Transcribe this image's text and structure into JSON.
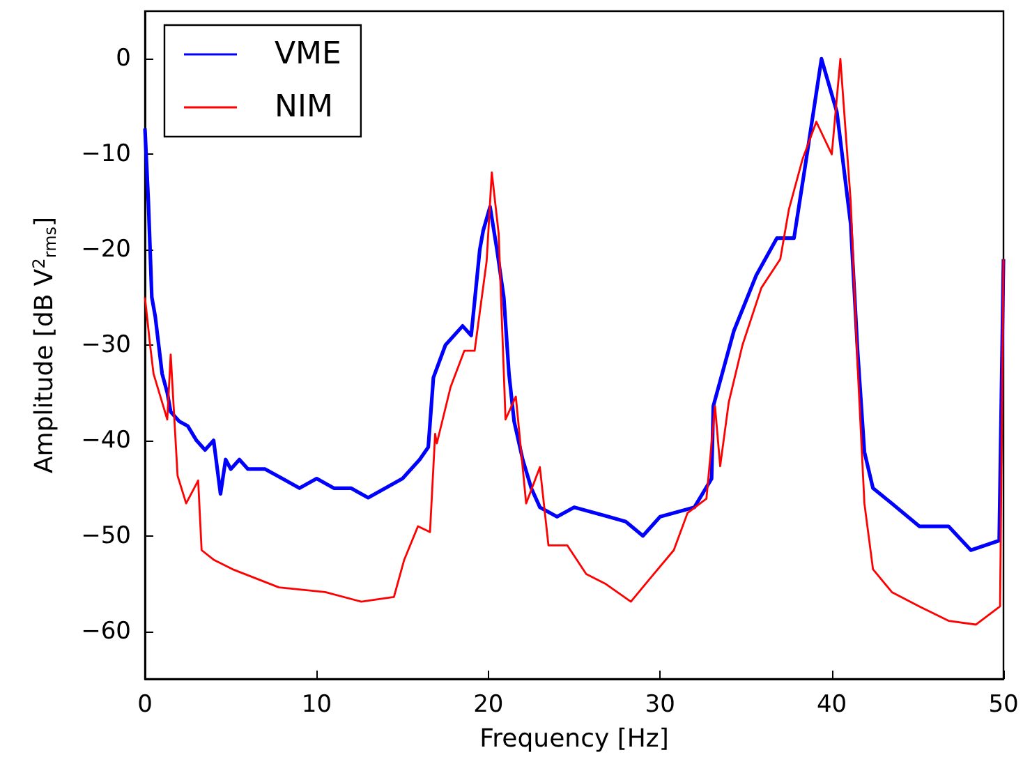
{
  "chart_data": {
    "type": "line",
    "xlabel": "Frequency [Hz]",
    "ylabel": "Amplitude [dB V$^{2}$$_{rms}$]",
    "xlim": [
      0,
      50
    ],
    "xticks": [
      0,
      10,
      20,
      30,
      40,
      50
    ],
    "ylim": [
      -65,
      5
    ],
    "yticks": [
      -60,
      -50,
      -40,
      -30,
      -20,
      -10,
      0
    ],
    "grid": false,
    "legend": "top left",
    "marker": "none",
    "line_style": "solid",
    "series": [
      {
        "name": "VME",
        "color": "#0000ff",
        "x": [
          0,
          0.2,
          0.4,
          0.6,
          0.8,
          1.0,
          1.3,
          1.5,
          2.0,
          2.5,
          3.0,
          3.5,
          4.0,
          4.4,
          4.7,
          5.0,
          5.5,
          6.0,
          7.0,
          8.0,
          9.0,
          10.0,
          11.0,
          12.0,
          13.0,
          14.0,
          15.0,
          16.0,
          16.5,
          16.8,
          17.5,
          18.5,
          19.0,
          19.5,
          19.7,
          20.1,
          20.5,
          20.9,
          21.2,
          21.5,
          22.0,
          22.5,
          23.0,
          24.0,
          25.0,
          26.0,
          27.0,
          28.0,
          29.0,
          30.0,
          31.0,
          32.0,
          33.0,
          33.1,
          34.3,
          35.6,
          36.8,
          37.8,
          38.6,
          39.4,
          40.3,
          41.1,
          41.5,
          41.9,
          42.4,
          43.5,
          45.1,
          46.8,
          48.1,
          49.75,
          50
        ],
        "values": [
          -7.3,
          -15,
          -25,
          -27,
          -30,
          -33,
          -35,
          -37,
          -38,
          -38.5,
          -40,
          -41,
          -40,
          -45.6,
          -42,
          -43,
          -42,
          -43,
          -43,
          -44,
          -45,
          -44,
          -45,
          -45,
          -46,
          -45,
          -44,
          -42,
          -40.7,
          -33.4,
          -30,
          -28,
          -29,
          -20,
          -18,
          -15.5,
          -20,
          -25,
          -33,
          -38,
          -42,
          -45,
          -47,
          -48,
          -47,
          -47.5,
          -48,
          -48.5,
          -50,
          -48,
          -47.5,
          -47,
          -44,
          -36.4,
          -28.5,
          -22.7,
          -18.8,
          -18.8,
          -9.5,
          0,
          -5.6,
          -17.3,
          -30.5,
          -41.2,
          -45,
          -46.6,
          -49,
          -49,
          -51.5,
          -50.5,
          -21
        ]
      },
      {
        "name": "NIM",
        "color": "#ff0000",
        "x": [
          0,
          0.3,
          0.5,
          1.0,
          1.3,
          1.5,
          1.9,
          2.4,
          3.1,
          3.3,
          4.0,
          5.1,
          7.8,
          10.5,
          12.6,
          14.5,
          15.1,
          15.9,
          16.6,
          16.9,
          17.0,
          17.8,
          18.6,
          19.2,
          19.9,
          20.2,
          20.6,
          21.0,
          21.6,
          22.2,
          23.0,
          23.5,
          24.6,
          25.7,
          26.8,
          28.3,
          29.4,
          30.8,
          31.6,
          32.7,
          33.2,
          33.5,
          34.0,
          34.8,
          35.9,
          37.0,
          37.5,
          38.3,
          39.1,
          40.0,
          40.5,
          41.1,
          41.5,
          41.9,
          42.4,
          43.5,
          45.1,
          46.8,
          48.4,
          49.8,
          50
        ],
        "values": [
          -25,
          -30,
          -33,
          -36,
          -37.8,
          -31,
          -43.7,
          -46.6,
          -44.2,
          -51.5,
          -52.5,
          -53.5,
          -55.4,
          -55.9,
          -56.9,
          -56.4,
          -52.5,
          -49,
          -49.6,
          -39.3,
          -40.3,
          -34.4,
          -30.6,
          -30.6,
          -21.2,
          -11.9,
          -18.3,
          -37.8,
          -35.4,
          -46.6,
          -42.8,
          -51,
          -51,
          -54,
          -55,
          -56.9,
          -54.5,
          -51.5,
          -47.6,
          -46.1,
          -36.4,
          -42.7,
          -36,
          -30,
          -24,
          -21,
          -15.8,
          -10.5,
          -6.6,
          -10,
          0,
          -14.9,
          -32,
          -46.6,
          -53.5,
          -55.9,
          -57.4,
          -58.9,
          -59.3,
          -57.4,
          -21
        ]
      }
    ]
  }
}
